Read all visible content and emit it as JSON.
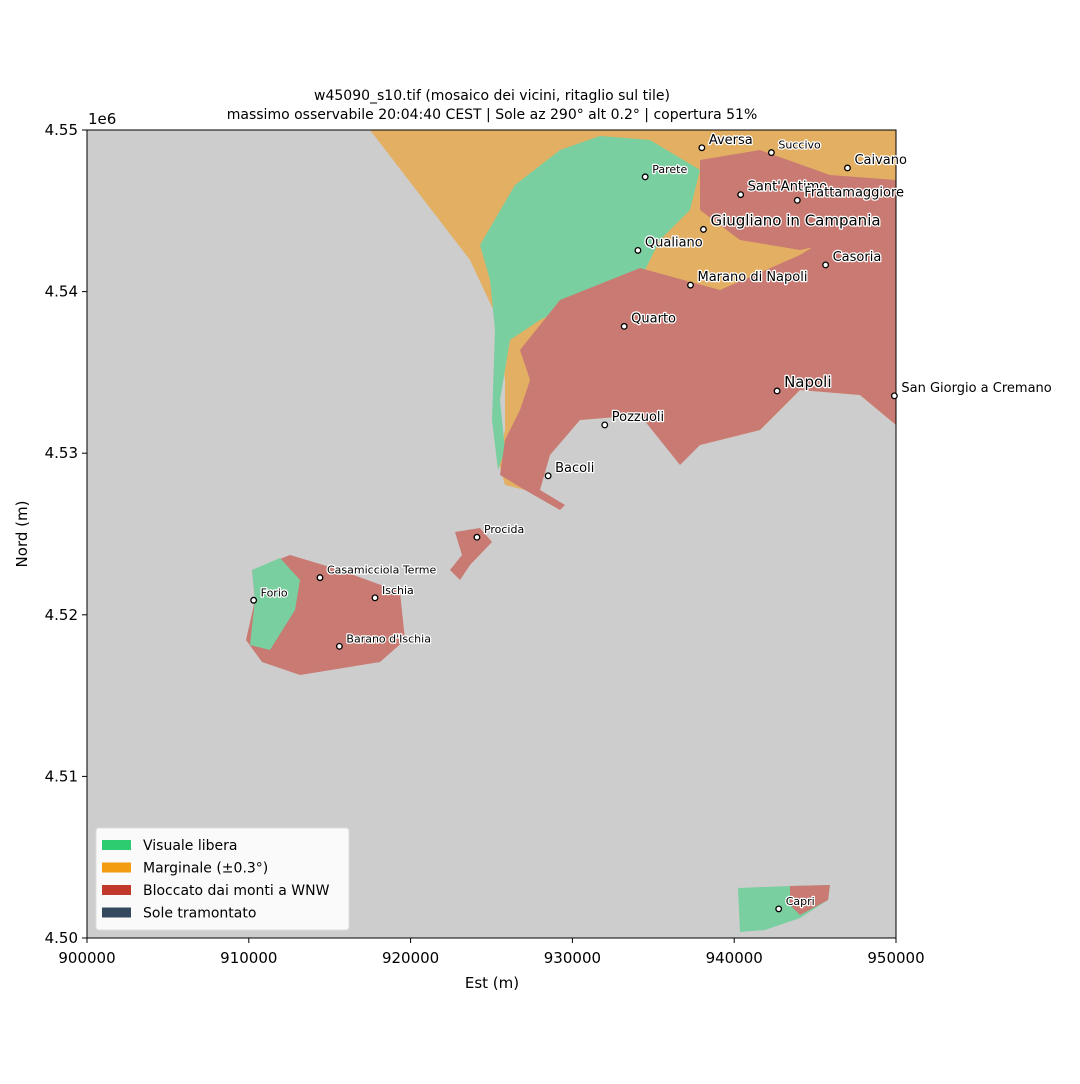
{
  "chart_data": {
    "type": "map",
    "title": "w45090_s10.tif  (mosaico dei vicini, ritaglio sul tile)",
    "subtitle": "massimo osservabile 20:04:40 CEST | Sole az 290° alt 0.2° | copertura 51%",
    "x_label": "Est (m)",
    "y_label": "Nord (m)",
    "y_offset_label": "1e6",
    "xlim": [
      900000,
      950000
    ],
    "ylim": [
      4500000,
      4550000
    ],
    "xticks": [
      900000,
      910000,
      920000,
      930000,
      940000,
      950000
    ],
    "yticks": [
      {
        "value": 4500000,
        "label": "4.50"
      },
      {
        "value": 4510000,
        "label": "4.51"
      },
      {
        "value": 4520000,
        "label": "4.52"
      },
      {
        "value": 4530000,
        "label": "4.53"
      },
      {
        "value": 4540000,
        "label": "4.54"
      },
      {
        "value": 4550000,
        "label": "4.55"
      }
    ],
    "background_color": "#cdcdcd",
    "towns": [
      {
        "name": "Aversa",
        "x": 938000,
        "y": 4548900,
        "fontsize": 13
      },
      {
        "name": "Succivo",
        "x": 942300,
        "y": 4548600,
        "fontsize": 11
      },
      {
        "name": "Caivano",
        "x": 947000,
        "y": 4547650,
        "fontsize": 13
      },
      {
        "name": "Parete",
        "x": 934500,
        "y": 4547100,
        "fontsize": 11
      },
      {
        "name": "Sant'Antimo",
        "x": 940400,
        "y": 4546000,
        "fontsize": 13
      },
      {
        "name": "Frattamaggiore",
        "x": 943900,
        "y": 4545650,
        "fontsize": 13
      },
      {
        "name": "Giugliano in Campania",
        "x": 938100,
        "y": 4543850,
        "fontsize": 15
      },
      {
        "name": "Qualiano",
        "x": 934050,
        "y": 4542550,
        "fontsize": 13
      },
      {
        "name": "Casoria",
        "x": 945650,
        "y": 4541650,
        "fontsize": 13
      },
      {
        "name": "Marano di Napoli",
        "x": 937300,
        "y": 4540400,
        "fontsize": 13
      },
      {
        "name": "Quarto",
        "x": 933200,
        "y": 4537850,
        "fontsize": 13
      },
      {
        "name": "Napoli",
        "x": 942650,
        "y": 4533850,
        "fontsize": 15
      },
      {
        "name": "San Giorgio a Cremano",
        "x": 949900,
        "y": 4533550,
        "fontsize": 13
      },
      {
        "name": "Pozzuoli",
        "x": 932000,
        "y": 4531750,
        "fontsize": 13
      },
      {
        "name": "Bacoli",
        "x": 928500,
        "y": 4528600,
        "fontsize": 13
      },
      {
        "name": "Procida",
        "x": 924100,
        "y": 4524800,
        "fontsize": 11
      },
      {
        "name": "Casamicciola Terme",
        "x": 914400,
        "y": 4522300,
        "fontsize": 11
      },
      {
        "name": "Ischia",
        "x": 917800,
        "y": 4521050,
        "fontsize": 11
      },
      {
        "name": "Forio",
        "x": 910300,
        "y": 4520900,
        "fontsize": 11
      },
      {
        "name": "Barano d'Ischia",
        "x": 915600,
        "y": 4518050,
        "fontsize": 11
      },
      {
        "name": "Capri",
        "x": 942750,
        "y": 4501800,
        "fontsize": 11
      }
    ],
    "legend": [
      {
        "name": "Visuale libera",
        "color": "#2ecc71"
      },
      {
        "name": "Marginale (±0.3°)",
        "color": "#f39c12"
      },
      {
        "name": "Bloccato dai monti a WNW",
        "color": "#c0392b"
      },
      {
        "name": "Sole tramontato",
        "color": "#34495e"
      }
    ],
    "legend_position": "lower left"
  }
}
